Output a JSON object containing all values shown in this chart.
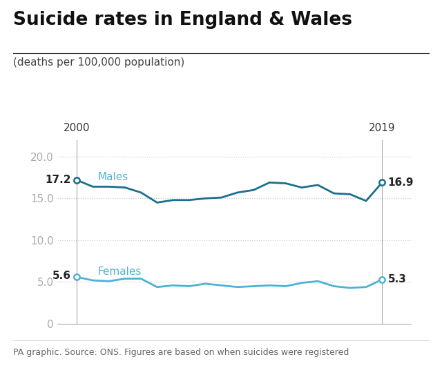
{
  "title": "Suicide rates in England & Wales",
  "subtitle": "(deaths per 100,000 population)",
  "footer": "PA graphic. Source: ONS. Figures are based on when suicides were registered",
  "years": [
    2000,
    2001,
    2002,
    2003,
    2004,
    2005,
    2006,
    2007,
    2008,
    2009,
    2010,
    2011,
    2012,
    2013,
    2014,
    2015,
    2016,
    2017,
    2018,
    2019
  ],
  "males": [
    17.2,
    16.4,
    16.4,
    16.3,
    15.7,
    14.5,
    14.8,
    14.8,
    15.0,
    15.1,
    15.7,
    16.0,
    16.9,
    16.8,
    16.3,
    16.6,
    15.6,
    15.5,
    14.7,
    16.9
  ],
  "females": [
    5.6,
    5.2,
    5.1,
    5.4,
    5.4,
    4.4,
    4.6,
    4.5,
    4.8,
    4.6,
    4.4,
    4.5,
    4.6,
    4.5,
    4.9,
    5.1,
    4.5,
    4.3,
    4.4,
    5.3
  ],
  "males_color": "#1a6e8e",
  "females_color": "#4db3d4",
  "year_label_color": "#333333",
  "grid_color": "#cccccc",
  "background_color": "#ffffff",
  "title_border_color": "#333333",
  "ytick_color": "#aaaaaa",
  "spine_color": "#aaaaaa",
  "vline_color": "#aaaaaa",
  "x_start_year": 2000,
  "x_end_year": 2019,
  "ylim": [
    0,
    22
  ],
  "yticks": [
    0,
    5.0,
    10.0,
    15.0,
    20.0
  ],
  "title_fontsize": 19,
  "subtitle_fontsize": 11,
  "label_fontsize": 11,
  "annotation_fontsize": 11,
  "footer_fontsize": 9,
  "line_width": 2.0
}
